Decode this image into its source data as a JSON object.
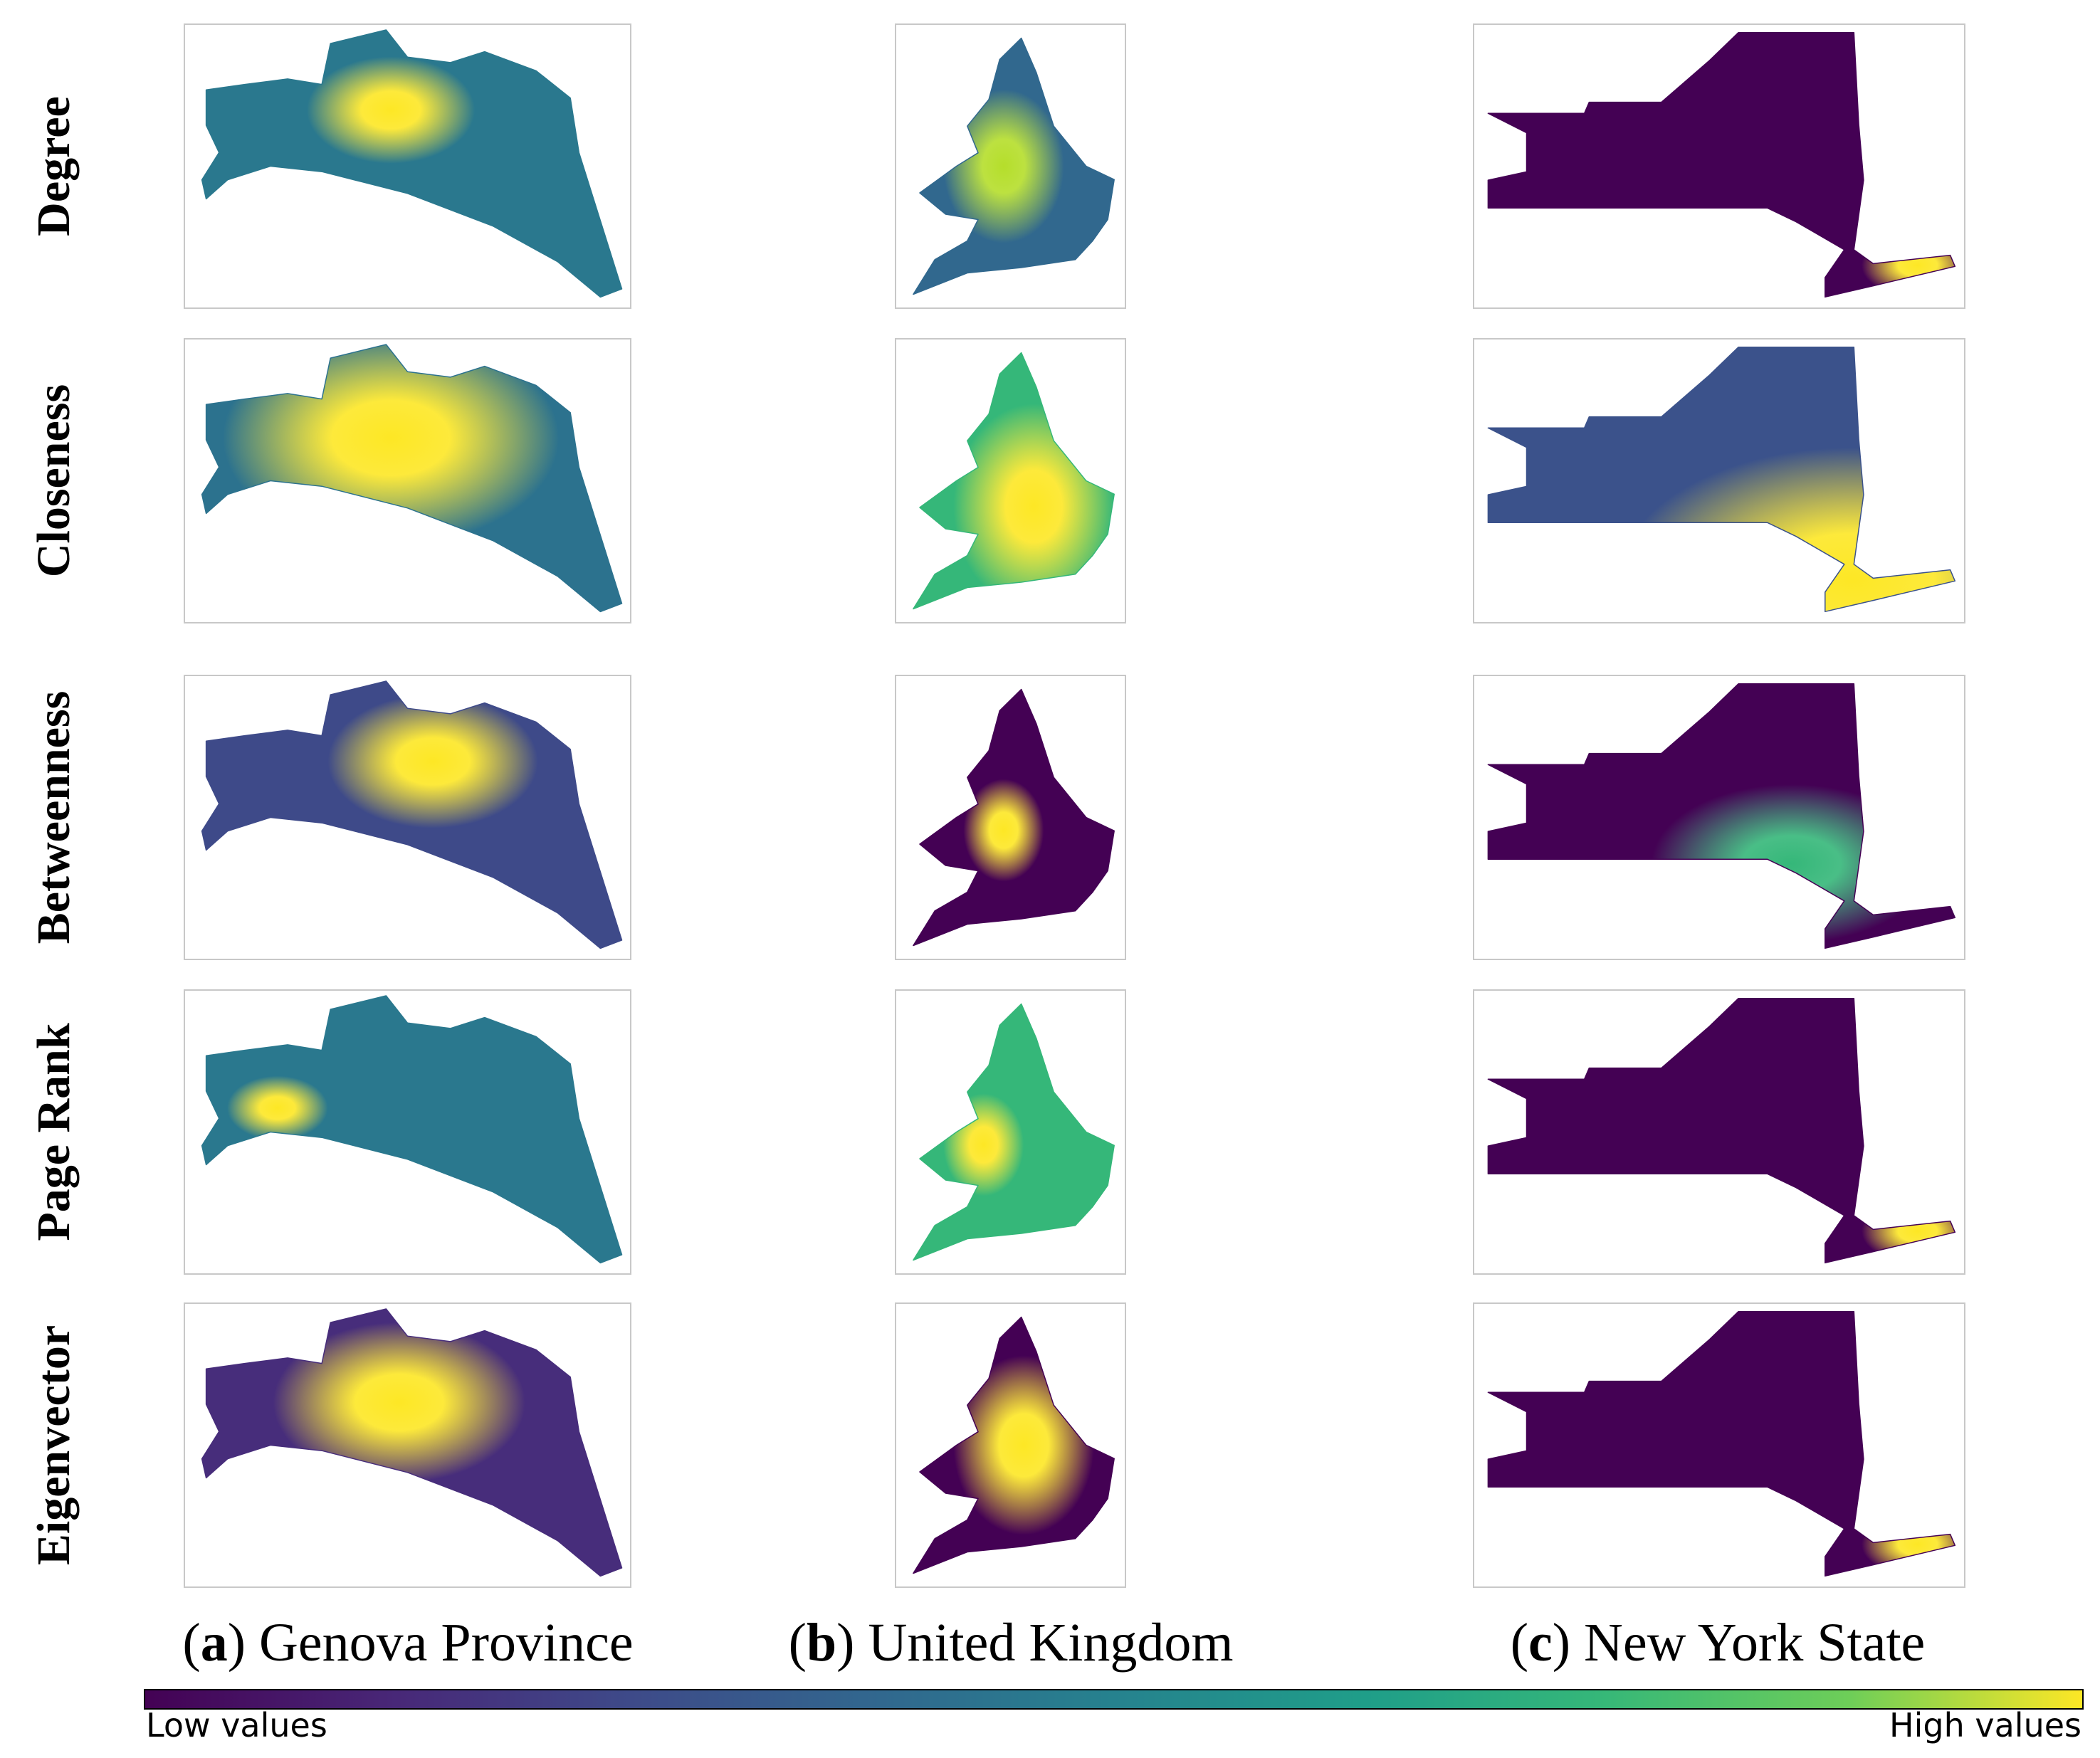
{
  "rows": [
    "Degree",
    "Closeness",
    "Betweenness",
    "Page Rank",
    "Eigenvector"
  ],
  "columns": [
    {
      "open": "(",
      "letter": "a",
      "rest": ") Genova Province"
    },
    {
      "open": "(",
      "letter": "b",
      "rest": ") United Kingdom"
    },
    {
      "open": "(",
      "letter": "c",
      "rest": ") New York State"
    }
  ],
  "colorbar": {
    "low": "Low values",
    "high": "High values"
  }
}
